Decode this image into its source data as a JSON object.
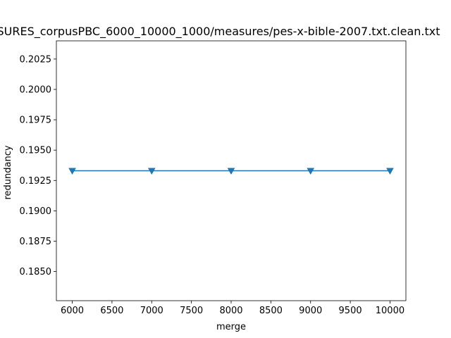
{
  "chart_data": {
    "type": "line",
    "title": "SURES_corpusPBC_6000_10000_1000/measures/pes-x-bible-2007.txt.clean.txt",
    "xlabel": "merge",
    "ylabel": "redundancy",
    "x": [
      6000,
      7000,
      8000,
      9000,
      10000
    ],
    "series": [
      {
        "values": [
          0.1933,
          0.1933,
          0.1933,
          0.1933,
          0.1933
        ],
        "color": "#1f77b4",
        "marker": "triangle-down"
      }
    ],
    "xlim": [
      5800,
      10200
    ],
    "ylim": [
      0.1826,
      0.204
    ],
    "xticks": [
      6000,
      6500,
      7000,
      7500,
      8000,
      8500,
      9000,
      9500,
      10000
    ],
    "xtick_labels": [
      "6000",
      "6500",
      "7000",
      "7500",
      "8000",
      "8500",
      "9000",
      "9500",
      "10000"
    ],
    "yticks": [
      0.185,
      0.1875,
      0.19,
      0.1925,
      0.195,
      0.1975,
      0.2,
      0.2025
    ],
    "ytick_labels": [
      "0.1850",
      "0.1875",
      "0.1900",
      "0.1925",
      "0.1950",
      "0.1975",
      "0.2000",
      "0.2025"
    ],
    "grid": false,
    "legend": "none"
  }
}
